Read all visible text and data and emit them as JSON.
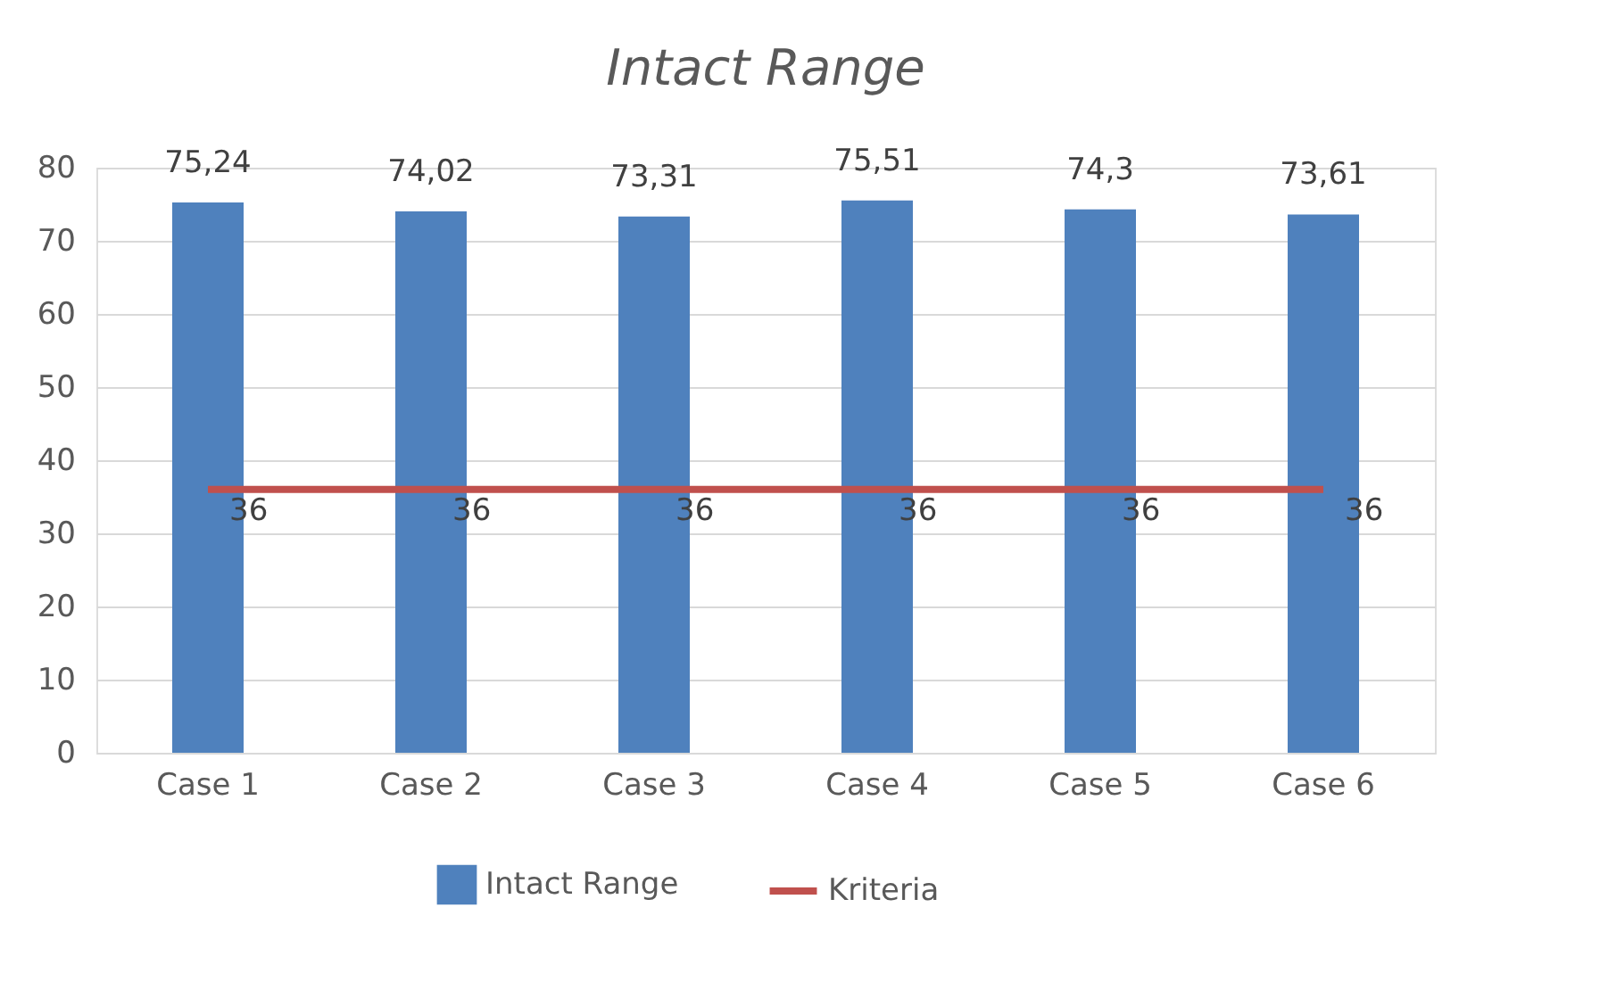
{
  "chart_data": {
    "type": "bar",
    "title": "Intact Range",
    "categories": [
      "Case 1",
      "Case 2",
      "Case 3",
      "Case 4",
      "Case 5",
      "Case 6"
    ],
    "series": [
      {
        "name": "Intact Range",
        "color": "#4f81bd",
        "values": [
          75.24,
          74.02,
          73.31,
          75.51,
          74.3,
          73.61
        ],
        "value_labels": [
          "75,24",
          "74,02",
          "73,31",
          "75,51",
          "74,3",
          "73,61"
        ]
      },
      {
        "name": "Kriteria",
        "type": "line",
        "color": "#c0504d",
        "values": [
          36,
          36,
          36,
          36,
          36,
          36
        ],
        "value_labels": [
          "36",
          "36",
          "36",
          "36",
          "36",
          "36"
        ]
      }
    ],
    "ylim": [
      0,
      80
    ],
    "yticks": [
      0,
      10,
      20,
      30,
      40,
      50,
      60,
      70,
      80
    ],
    "grid": "y",
    "legend": "bottom"
  }
}
